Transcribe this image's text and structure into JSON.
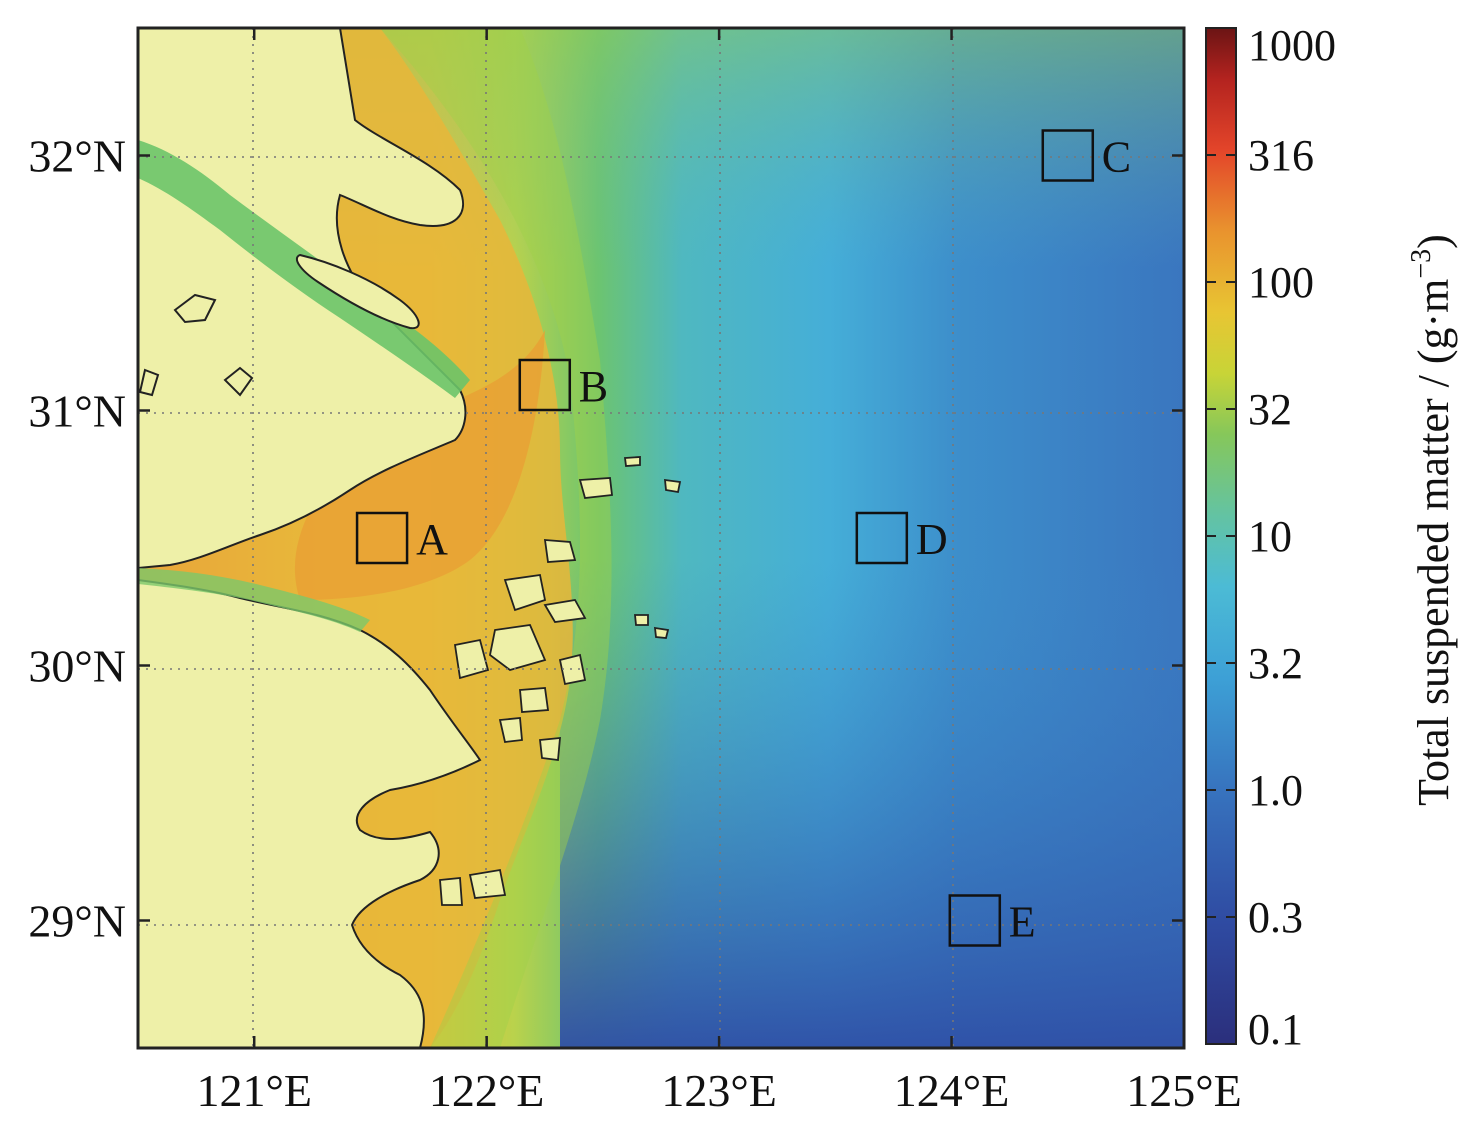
{
  "map": {
    "x_ticks": [
      "121°E",
      "122°E",
      "123°E",
      "124°E",
      "125°E"
    ],
    "y_ticks": [
      "32°N",
      "31°N",
      "30°N",
      "29°N"
    ],
    "lon_range": [
      120.5,
      125.0
    ],
    "lat_range": [
      28.5,
      32.5
    ],
    "grid": "dotted",
    "sites": [
      {
        "label": "A",
        "lon": 121.55,
        "lat": 30.5
      },
      {
        "label": "B",
        "lon": 122.25,
        "lat": 31.1
      },
      {
        "label": "C",
        "lon": 124.5,
        "lat": 32.0
      },
      {
        "label": "D",
        "lon": 123.7,
        "lat": 30.5
      },
      {
        "label": "E",
        "lon": 124.1,
        "lat": 29.0
      }
    ],
    "colors": {
      "land": "#EEF0A8",
      "coast_line": "#222222",
      "turbid_high": "#E8A535",
      "turbid_mid": "#E3C93A",
      "green": "#6CC469",
      "teal": "#5EB8B8",
      "cyan": "#46B2D6",
      "blue": "#3A86C8",
      "deep_blue": "#304FA6"
    }
  },
  "colorbar": {
    "title_main": "Total suspended matter / (g·m",
    "title_sup": "−3",
    "title_close": ")",
    "ticks": [
      "1000",
      "316",
      "100",
      "32",
      "10",
      "3.2",
      "1.0",
      "0.3",
      "0.1"
    ]
  }
}
